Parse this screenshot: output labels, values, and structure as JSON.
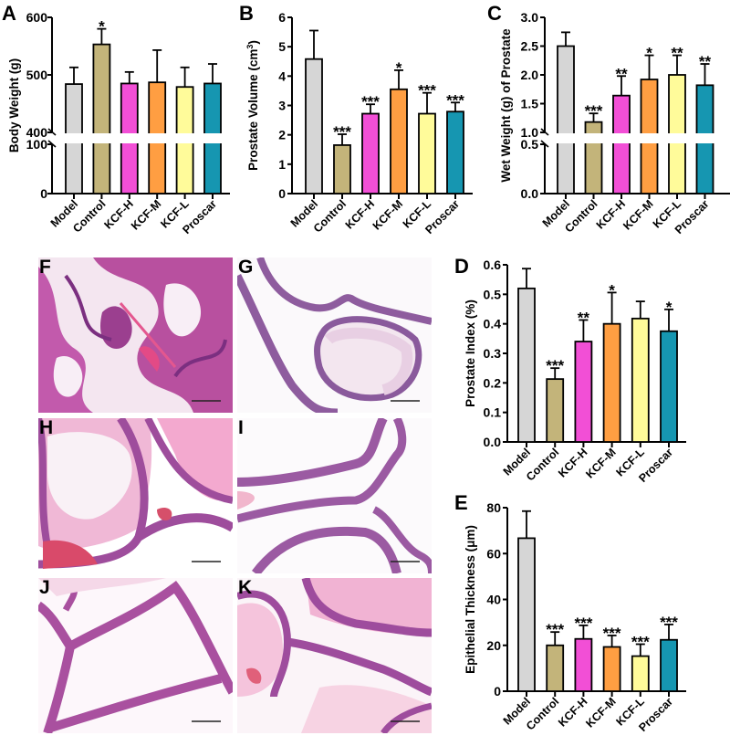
{
  "figure": {
    "panels": [
      "A",
      "B",
      "C",
      "D",
      "E",
      "F",
      "G",
      "H",
      "I",
      "J",
      "K"
    ],
    "group_colors": {
      "Model": "#d6d6d6",
      "Control": "#c3b47a",
      "KCF-H": "#f24fd6",
      "KCF-M": "#ff9e42",
      "KCF-L": "#fffb9a",
      "Proscar": "#1696b1"
    },
    "histology_labels": [
      "F",
      "G",
      "H",
      "I",
      "J",
      "K"
    ]
  },
  "chart_data": [
    {
      "panel": "A",
      "type": "bar",
      "title": "",
      "xlabel": "",
      "ylabel": "Body Weight (g)",
      "categories": [
        "Model",
        "Control",
        "KCF-H",
        "KCF-M",
        "KCF-L",
        "Proscar"
      ],
      "values": [
        484,
        553,
        485,
        487,
        479,
        485
      ],
      "error_upper": [
        513,
        580,
        505,
        543,
        513,
        519
      ],
      "significance": [
        "",
        "*",
        "",
        "",
        "",
        ""
      ],
      "yaxis_break": {
        "lower": [
          0,
          100
        ],
        "upper": [
          400,
          600
        ]
      },
      "yticks": [
        0,
        100,
        400,
        500,
        600
      ],
      "ylim": [
        0,
        600
      ],
      "grid": false,
      "legend": null
    },
    {
      "panel": "B",
      "type": "bar",
      "title": "",
      "xlabel": "",
      "ylabel": "Prostate Volume (cm3)",
      "categories": [
        "Model",
        "Control",
        "KCF-H",
        "KCF-M",
        "KCF-L",
        "Proscar"
      ],
      "values": [
        4.58,
        1.65,
        2.72,
        3.55,
        2.72,
        2.79
      ],
      "error_upper": [
        5.55,
        2.02,
        3.04,
        4.2,
        3.43,
        3.1
      ],
      "significance": [
        "",
        "***",
        "***",
        "*",
        "***",
        "***"
      ],
      "yticks": [
        0,
        1,
        2,
        3,
        4,
        5,
        6
      ],
      "ylim": [
        0,
        6
      ],
      "grid": false,
      "legend": null
    },
    {
      "panel": "C",
      "type": "bar",
      "title": "",
      "xlabel": "",
      "ylabel": "Wet Weight (g) of Prostate",
      "categories": [
        "Model",
        "Control",
        "KCF-H",
        "KCF-M",
        "KCF-L",
        "Proscar"
      ],
      "values": [
        2.5,
        1.18,
        1.64,
        1.92,
        2.0,
        1.82
      ],
      "error_upper": [
        2.74,
        1.33,
        1.98,
        2.34,
        2.34,
        2.19
      ],
      "significance": [
        "",
        "***",
        "**",
        "*",
        "**",
        "**"
      ],
      "yaxis_break": {
        "lower": [
          0.0,
          0.5
        ],
        "upper": [
          1.0,
          3.0
        ]
      },
      "yticks": [
        0.0,
        0.5,
        1.0,
        1.5,
        2.0,
        2.5,
        3.0
      ],
      "ylim": [
        0,
        3.0
      ],
      "grid": false,
      "legend": null
    },
    {
      "panel": "D",
      "type": "bar",
      "title": "",
      "xlabel": "",
      "ylabel": "Prostate Index (%)",
      "categories": [
        "Model",
        "Control",
        "KCF-H",
        "KCF-M",
        "KCF-L",
        "Proscar"
      ],
      "values": [
        0.52,
        0.213,
        0.34,
        0.4,
        0.418,
        0.375
      ],
      "error_upper": [
        0.587,
        0.25,
        0.413,
        0.506,
        0.476,
        0.449
      ],
      "significance": [
        "",
        "***",
        "**",
        "*",
        "",
        "*"
      ],
      "yticks": [
        0.0,
        0.1,
        0.2,
        0.3,
        0.4,
        0.5,
        0.6
      ],
      "ylim": [
        0,
        0.6
      ],
      "grid": false,
      "legend": null
    },
    {
      "panel": "E",
      "type": "bar",
      "title": "",
      "xlabel": "",
      "ylabel": "Epithelial Thickness (μm)",
      "categories": [
        "Model",
        "Control",
        "KCF-H",
        "KCF-M",
        "KCF-L",
        "Proscar"
      ],
      "values": [
        66.7,
        20.0,
        22.8,
        19.3,
        15.3,
        22.4
      ],
      "error_upper": [
        78.5,
        25.8,
        28.7,
        24.3,
        20.5,
        29.1
      ],
      "significance": [
        "",
        "***",
        "***",
        "***",
        "***",
        "***"
      ],
      "yticks": [
        0,
        20,
        40,
        60,
        80
      ],
      "ylim": [
        0,
        80
      ],
      "grid": false,
      "legend": null
    }
  ]
}
